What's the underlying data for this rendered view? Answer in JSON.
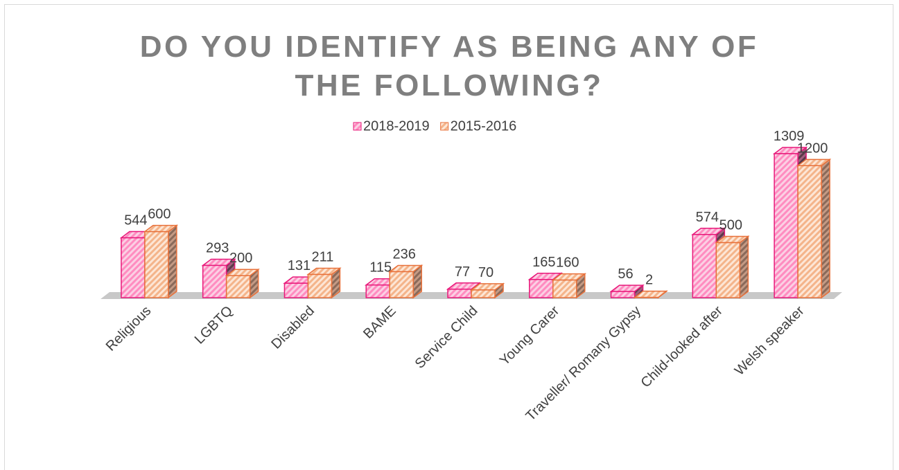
{
  "chart_data": {
    "type": "bar3d",
    "title": "DO YOU IDENTIFY AS BEING ANY OF THE FOLLOWING?",
    "categories": [
      "Religious",
      "LGBTQ",
      "Disabled",
      "BAME",
      "Service Child",
      "Young Carer",
      "Traveller/ Romany Gypsy",
      "Child-looked after",
      "Welsh speaker"
    ],
    "series": [
      {
        "name": "2018-2019",
        "color": "#e8197a",
        "values": [
          544,
          293,
          131,
          115,
          77,
          165,
          56,
          574,
          1309
        ]
      },
      {
        "name": "2015-2016",
        "color": "#e8703a",
        "values": [
          600,
          200,
          211,
          236,
          70,
          160,
          2,
          500,
          1200
        ]
      }
    ],
    "legend": "top"
  }
}
